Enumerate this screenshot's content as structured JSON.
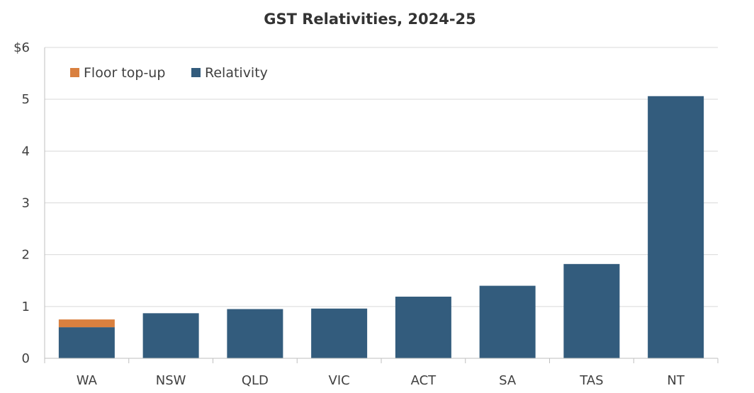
{
  "chart_data": {
    "type": "bar",
    "stacked": true,
    "title": "GST Relativities, 2024-25",
    "xlabel": "",
    "ylabel": "",
    "y_unit_prefix": "$",
    "ylim": [
      0,
      6
    ],
    "yticks": [
      0,
      1,
      2,
      3,
      4,
      5,
      6
    ],
    "grid": true,
    "legend_position": "top-left",
    "categories": [
      "WA",
      "NSW",
      "QLD",
      "VIC",
      "ACT",
      "SA",
      "TAS",
      "NT"
    ],
    "series": [
      {
        "name": "Relativity",
        "color": "#335c7d",
        "values": [
          0.6,
          0.87,
          0.95,
          0.96,
          1.19,
          1.4,
          1.82,
          5.06
        ]
      },
      {
        "name": "Floor top-up",
        "color": "#d9803f",
        "values": [
          0.15,
          0,
          0,
          0,
          0,
          0,
          0,
          0
        ]
      }
    ],
    "legend_order": [
      "Floor top-up",
      "Relativity"
    ]
  }
}
